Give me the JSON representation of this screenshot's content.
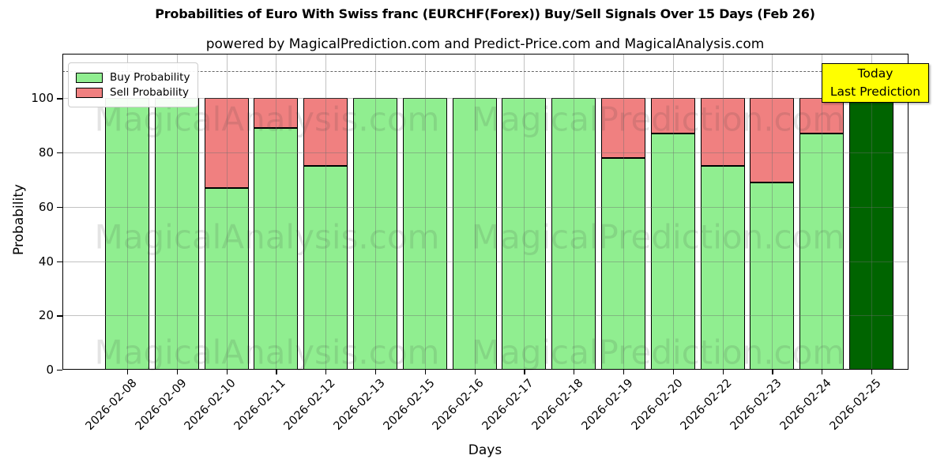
{
  "header": {
    "title": "Probabilities of Euro With Swiss franc (EURCHF(Forex)) Buy/Sell Signals Over 15 Days (Feb 26)",
    "subtitle": "powered by MagicalPrediction.com and Predict-Price.com and MagicalAnalysis.com"
  },
  "chart_data": {
    "type": "bar",
    "stacked": true,
    "title": "Probabilities of Euro With Swiss franc (EURCHF(Forex)) Buy/Sell Signals Over 15 Days (Feb 26)",
    "categories": [
      "2026-02-08",
      "2026-02-09",
      "2026-02-10",
      "2026-02-11",
      "2026-02-12",
      "2026-02-13",
      "2026-02-15",
      "2026-02-16",
      "2026-02-17",
      "2026-02-18",
      "2026-02-19",
      "2026-02-20",
      "2026-02-22",
      "2026-02-23",
      "2026-02-24",
      "2026-02-25"
    ],
    "series": [
      {
        "name": "Buy Probability",
        "color": "#90EE90",
        "values": [
          100,
          100,
          67,
          89,
          75,
          100,
          100,
          100,
          100,
          100,
          78,
          87,
          75,
          69,
          87,
          100
        ]
      },
      {
        "name": "Sell Probability",
        "color": "#F08080",
        "values": [
          0,
          0,
          33,
          11,
          25,
          0,
          0,
          0,
          0,
          0,
          22,
          13,
          25,
          31,
          13,
          0
        ]
      }
    ],
    "today_bar": {
      "category": "2026-02-25",
      "index": 15,
      "value": 100,
      "color": "#006400"
    },
    "xlabel": "Days",
    "ylabel": "Probability",
    "yticks": [
      0,
      20,
      40,
      60,
      80,
      100
    ],
    "ylim": [
      0,
      116.4
    ],
    "dashed_line_y": 110,
    "grid": true,
    "legend_position": "upper left",
    "bar_edge_color": "#000000"
  },
  "annotation": {
    "line1": "Today",
    "line2": "Last Prediction",
    "bg_color": "#FFFF00"
  },
  "watermarks": {
    "left_text": "MagicalAnalysis.com",
    "right_text": "MagicalPrediction.com"
  }
}
